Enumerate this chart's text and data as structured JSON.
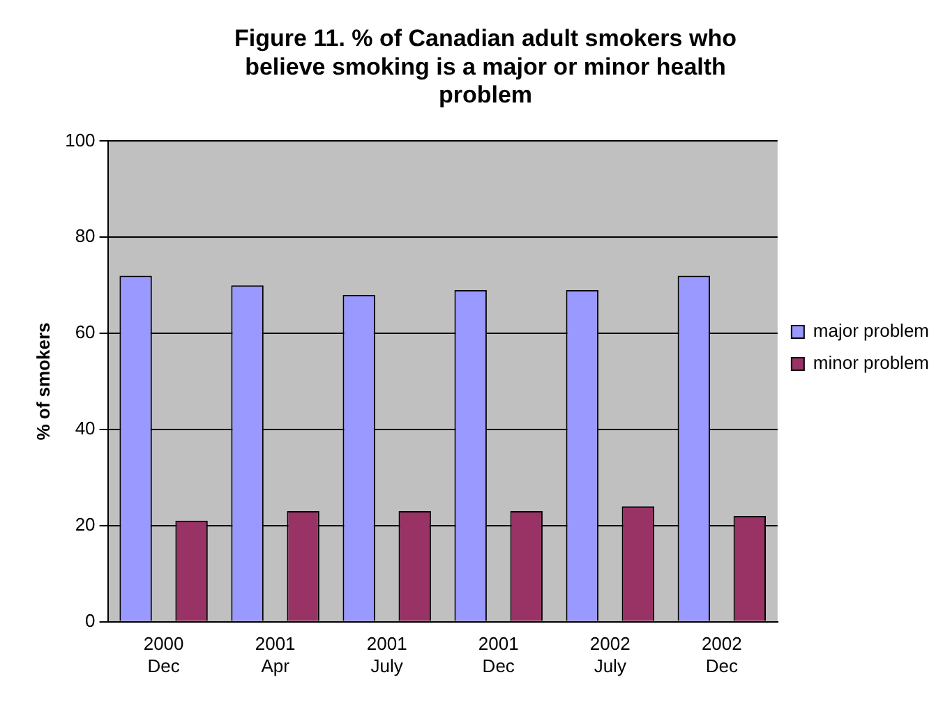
{
  "chart_data": {
    "type": "bar",
    "title": "Figure 11. % of Canadian adult smokers who believe smoking is a major or minor health problem",
    "ylabel": "% of smokers",
    "categories": [
      "2000 Dec",
      "2001 Apr",
      "2001 July",
      "2001 Dec",
      "2002 July",
      "2002 Dec"
    ],
    "series": [
      {
        "name": "major problem",
        "color": "#9999ff",
        "values": [
          72,
          70,
          68,
          69,
          69,
          72
        ]
      },
      {
        "name": "minor problem",
        "color": "#993366",
        "values": [
          21,
          23,
          23,
          23,
          24,
          22
        ]
      }
    ],
    "ylim": [
      0,
      100
    ],
    "yticks": [
      0,
      20,
      40,
      60,
      80,
      100
    ],
    "grid": "y",
    "legend": "right"
  }
}
